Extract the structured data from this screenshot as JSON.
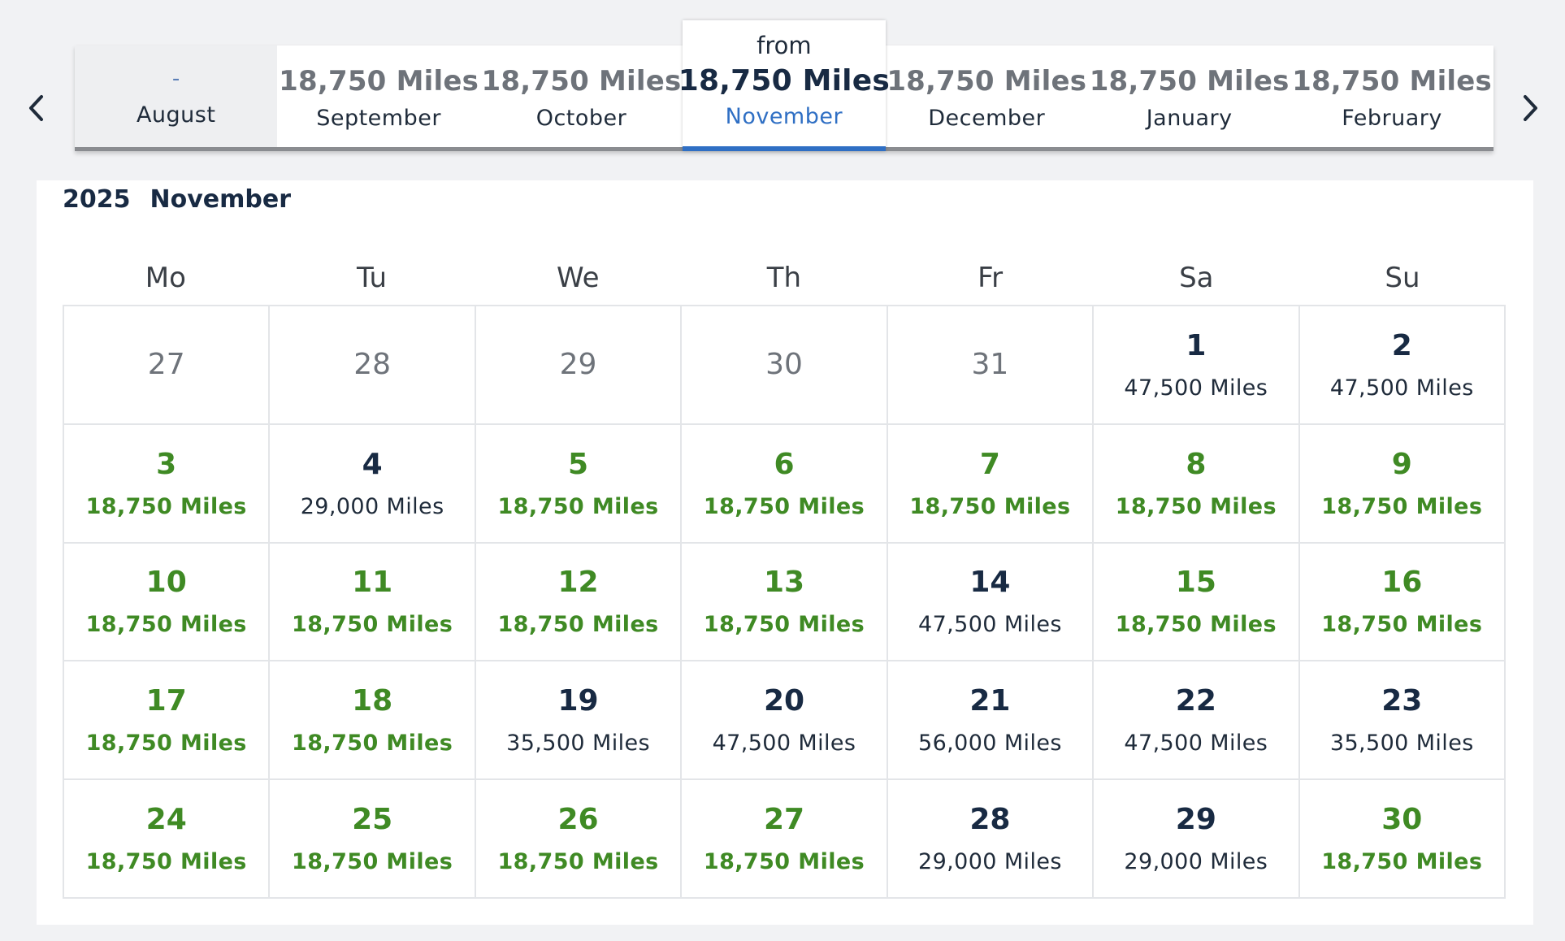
{
  "nav": {
    "prev_icon": "chevron-left-icon",
    "next_icon": "chevron-right-icon"
  },
  "months": [
    {
      "price": "-",
      "name": "August",
      "state": "disabled"
    },
    {
      "price": "18,750 Miles",
      "name": "September",
      "state": "normal"
    },
    {
      "price": "18,750 Miles",
      "name": "October",
      "state": "normal"
    },
    {
      "from": "from",
      "price": "18,750 Miles",
      "name": "November",
      "state": "selected"
    },
    {
      "price": "18,750 Miles",
      "name": "December",
      "state": "normal"
    },
    {
      "price": "18,750 Miles",
      "name": "January",
      "state": "normal"
    },
    {
      "price": "18,750 Miles",
      "name": "February",
      "state": "normal"
    }
  ],
  "calendar": {
    "year": "2025",
    "month": "November",
    "weekdays": [
      "Mo",
      "Tu",
      "We",
      "Th",
      "Fr",
      "Sa",
      "Su"
    ],
    "cells": [
      {
        "day": "27",
        "miles": "",
        "type": "other"
      },
      {
        "day": "28",
        "miles": "",
        "type": "other"
      },
      {
        "day": "29",
        "miles": "",
        "type": "other"
      },
      {
        "day": "30",
        "miles": "",
        "type": "other"
      },
      {
        "day": "31",
        "miles": "",
        "type": "other"
      },
      {
        "day": "1",
        "miles": "47,500 Miles",
        "type": "normal"
      },
      {
        "day": "2",
        "miles": "47,500 Miles",
        "type": "normal"
      },
      {
        "day": "3",
        "miles": "18,750 Miles",
        "type": "green"
      },
      {
        "day": "4",
        "miles": "29,000 Miles",
        "type": "normal"
      },
      {
        "day": "5",
        "miles": "18,750 Miles",
        "type": "green"
      },
      {
        "day": "6",
        "miles": "18,750 Miles",
        "type": "green"
      },
      {
        "day": "7",
        "miles": "18,750 Miles",
        "type": "green"
      },
      {
        "day": "8",
        "miles": "18,750 Miles",
        "type": "green"
      },
      {
        "day": "9",
        "miles": "18,750 Miles",
        "type": "green"
      },
      {
        "day": "10",
        "miles": "18,750 Miles",
        "type": "green"
      },
      {
        "day": "11",
        "miles": "18,750 Miles",
        "type": "green"
      },
      {
        "day": "12",
        "miles": "18,750 Miles",
        "type": "green"
      },
      {
        "day": "13",
        "miles": "18,750 Miles",
        "type": "green"
      },
      {
        "day": "14",
        "miles": "47,500 Miles",
        "type": "normal"
      },
      {
        "day": "15",
        "miles": "18,750 Miles",
        "type": "green"
      },
      {
        "day": "16",
        "miles": "18,750 Miles",
        "type": "green"
      },
      {
        "day": "17",
        "miles": "18,750 Miles",
        "type": "green"
      },
      {
        "day": "18",
        "miles": "18,750 Miles",
        "type": "green"
      },
      {
        "day": "19",
        "miles": "35,500 Miles",
        "type": "normal"
      },
      {
        "day": "20",
        "miles": "47,500 Miles",
        "type": "normal"
      },
      {
        "day": "21",
        "miles": "56,000 Miles",
        "type": "normal"
      },
      {
        "day": "22",
        "miles": "47,500 Miles",
        "type": "normal"
      },
      {
        "day": "23",
        "miles": "35,500 Miles",
        "type": "normal"
      },
      {
        "day": "24",
        "miles": "18,750 Miles",
        "type": "green"
      },
      {
        "day": "25",
        "miles": "18,750 Miles",
        "type": "green"
      },
      {
        "day": "26",
        "miles": "18,750 Miles",
        "type": "green"
      },
      {
        "day": "27",
        "miles": "18,750 Miles",
        "type": "green"
      },
      {
        "day": "28",
        "miles": "29,000 Miles",
        "type": "normal"
      },
      {
        "day": "29",
        "miles": "29,000 Miles",
        "type": "normal"
      },
      {
        "day": "30",
        "miles": "18,750 Miles",
        "type": "green"
      }
    ]
  },
  "colors": {
    "accent_blue": "#2f6fc4",
    "best_price_green": "#3f8a24",
    "text_dark": "#182a43"
  }
}
